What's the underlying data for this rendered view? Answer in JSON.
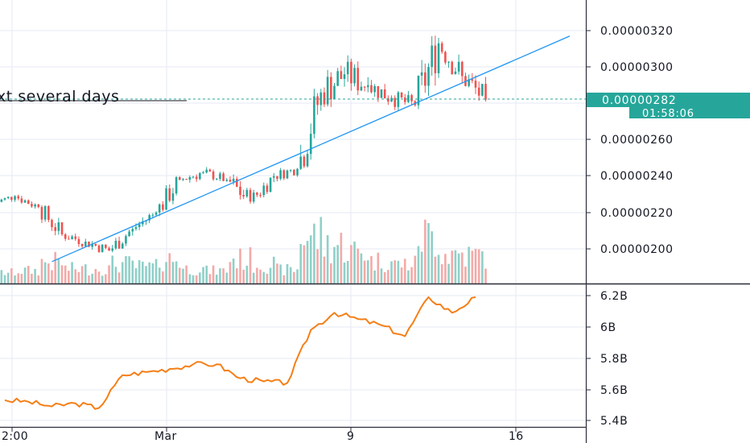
{
  "annotation": "xt several days",
  "colors": {
    "up": "#26a69a",
    "down": "#ef5350",
    "up_volume": "#8fd0c8",
    "down_volume": "#f3aaa8",
    "trendline": "#2196f3",
    "indicator": "#f57f17",
    "grid": "#e6eaf4",
    "axis": "#2a2e39",
    "last_price": "#26a69a"
  },
  "price_axis": {
    "ticks": [
      "0.00000320",
      "0.00000300",
      "0.00000260",
      "0.00000240",
      "0.00000220",
      "0.00000200"
    ],
    "last_price": "0.00000282",
    "countdown": "01:58:06"
  },
  "indicator_axis": {
    "ticks": [
      "6.2B",
      "6B",
      "5.8B",
      "5.6B",
      "5.4B"
    ]
  },
  "time_axis": {
    "ticks": [
      "2:00",
      "Mar",
      "9",
      "16"
    ]
  },
  "chart_data": [
    {
      "type": "candlestick",
      "x_range": [
        "Feb 21",
        "Mar 18"
      ],
      "ylim": [
        1.92e-06,
        3.24e-06
      ],
      "last_value": 2.82e-06,
      "trendline": {
        "from": [
          "Feb 23",
          1.93e-06
        ],
        "to": [
          "Mar 16",
          3.17e-06
        ]
      },
      "candles": [
        {
          "x": "Feb 21",
          "o": 2.25e-06,
          "h": 2.31e-06,
          "l": 2.23e-06,
          "c": 2.29e-06
        },
        {
          "x": "Feb 22",
          "o": 2.29e-06,
          "h": 2.3e-06,
          "l": 2.2e-06,
          "c": 2.23e-06
        },
        {
          "x": "Feb 23",
          "o": 2.23e-06,
          "h": 2.24e-06,
          "l": 2.05e-06,
          "c": 2.08e-06
        },
        {
          "x": "Feb 24",
          "o": 2.08e-06,
          "h": 2.12e-06,
          "l": 2e-06,
          "c": 2.04e-06
        },
        {
          "x": "Feb 25",
          "o": 2.04e-06,
          "h": 2.08e-06,
          "l": 1.96e-06,
          "c": 1.99e-06
        },
        {
          "x": "Feb 26",
          "o": 1.99e-06,
          "h": 2.15e-06,
          "l": 1.98e-06,
          "c": 2.11e-06
        },
        {
          "x": "Feb 27",
          "o": 2.11e-06,
          "h": 2.24e-06,
          "l": 2.1e-06,
          "c": 2.2e-06
        },
        {
          "x": "Feb 28",
          "o": 2.2e-06,
          "h": 2.4e-06,
          "l": 2.18e-06,
          "c": 2.38e-06
        },
        {
          "x": "Feb 29",
          "o": 2.38e-06,
          "h": 2.46e-06,
          "l": 2.34e-06,
          "c": 2.42e-06
        },
        {
          "x": "Mar 1",
          "o": 2.42e-06,
          "h": 2.45e-06,
          "l": 2.35e-06,
          "c": 2.38e-06
        },
        {
          "x": "Mar 2",
          "o": 2.38e-06,
          "h": 2.42e-06,
          "l": 2.2e-06,
          "c": 2.26e-06
        },
        {
          "x": "Mar 3",
          "o": 2.26e-06,
          "h": 2.42e-06,
          "l": 2.25e-06,
          "c": 2.4e-06
        },
        {
          "x": "Mar 4",
          "o": 2.4e-06,
          "h": 2.48e-06,
          "l": 2.37e-06,
          "c": 2.44e-06
        },
        {
          "x": "Mar 5",
          "o": 2.44e-06,
          "h": 2.88e-06,
          "l": 2.42e-06,
          "c": 2.86e-06
        },
        {
          "x": "Mar 6",
          "o": 2.86e-06,
          "h": 3.15e-06,
          "l": 2.78e-06,
          "c": 2.96e-06
        },
        {
          "x": "Mar 7",
          "o": 2.96e-06,
          "h": 3.13e-06,
          "l": 2.83e-06,
          "c": 2.9e-06
        },
        {
          "x": "Mar 8",
          "o": 2.9e-06,
          "h": 2.98e-06,
          "l": 2.78e-06,
          "c": 2.83e-06
        },
        {
          "x": "Mar 9",
          "o": 2.83e-06,
          "h": 2.88e-06,
          "l": 2.71e-06,
          "c": 2.79e-06
        },
        {
          "x": "Mar 10",
          "o": 2.79e-06,
          "h": 3.22e-06,
          "l": 2.76e-06,
          "c": 3.13e-06
        },
        {
          "x": "Mar 11",
          "o": 3.13e-06,
          "h": 3.16e-06,
          "l": 2.88e-06,
          "c": 2.95e-06
        },
        {
          "x": "Mar 12",
          "o": 2.95e-06,
          "h": 2.98e-06,
          "l": 2.72e-06,
          "c": 2.82e-06
        }
      ],
      "volume_note": "volume bars drawn under candles, taller on high-activity days"
    },
    {
      "type": "line",
      "series": [
        {
          "x": [
            "Feb 21",
            "Feb 22",
            "Feb 23",
            "Feb 24",
            "Feb 25",
            "Feb 26",
            "Feb 27",
            "Feb 28",
            "Feb 29",
            "Mar 1",
            "Mar 2",
            "Mar 3",
            "Mar 4",
            "Mar 5",
            "Mar 6",
            "Mar 7",
            "Mar 8",
            "Mar 9",
            "Mar 10",
            "Mar 11",
            "Mar 12"
          ],
          "values": [
            5.53,
            5.52,
            5.49,
            5.51,
            5.48,
            5.69,
            5.71,
            5.73,
            5.76,
            5.76,
            5.67,
            5.65,
            5.64,
            5.98,
            6.09,
            6.05,
            6.01,
            5.94,
            6.19,
            6.09,
            6.19
          ]
        }
      ],
      "ylim": [
        5.4,
        6.25
      ],
      "unit": "B"
    }
  ]
}
